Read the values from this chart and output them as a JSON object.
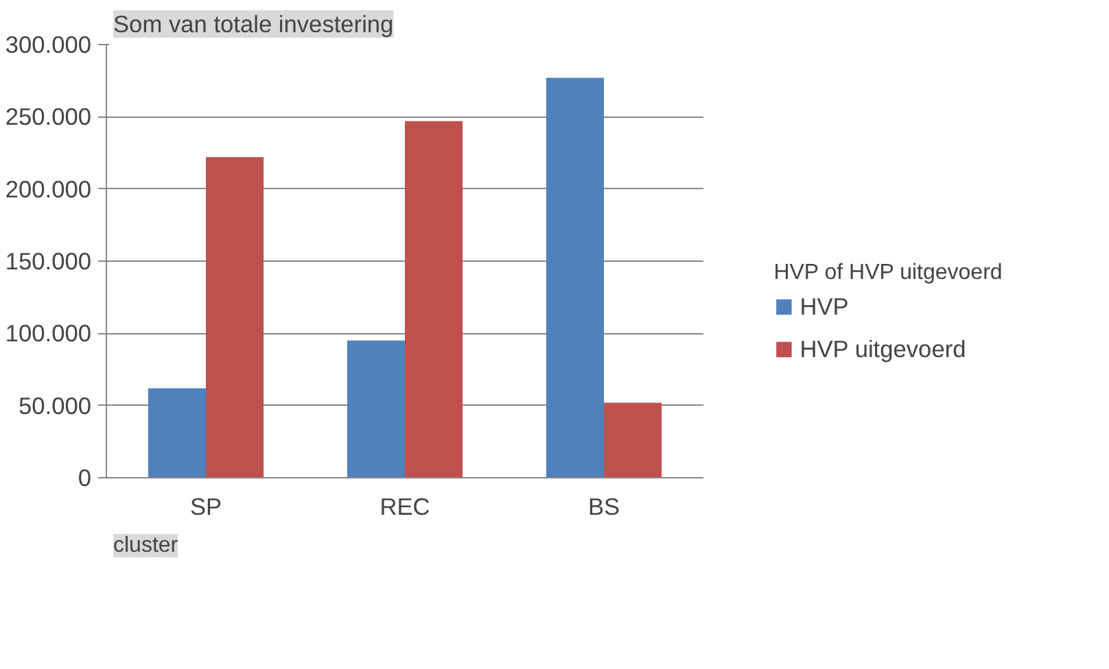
{
  "chart_data": {
    "type": "bar",
    "title": "Som van totale investering",
    "xlabel": "cluster",
    "legend_title": "HVP of HVP uitgevoerd",
    "categories": [
      "SP",
      "REC",
      "BS"
    ],
    "series": [
      {
        "name": "HVP",
        "color": "#4f81bd",
        "values": [
          62000,
          95000,
          277000
        ]
      },
      {
        "name": "HVP uitgevoerd",
        "color": "#c0504d",
        "values": [
          222000,
          247000,
          52000
        ]
      }
    ],
    "ylim": [
      0,
      300000
    ],
    "yticks": [
      {
        "value": 0,
        "label": "0"
      },
      {
        "value": 50000,
        "label": "50.000"
      },
      {
        "value": 100000,
        "label": "100.000"
      },
      {
        "value": 150000,
        "label": "150.000"
      },
      {
        "value": 200000,
        "label": "200.000"
      },
      {
        "value": 250000,
        "label": "250.000"
      },
      {
        "value": 300000,
        "label": "300.000"
      }
    ],
    "grid": "y",
    "legend": "right"
  }
}
